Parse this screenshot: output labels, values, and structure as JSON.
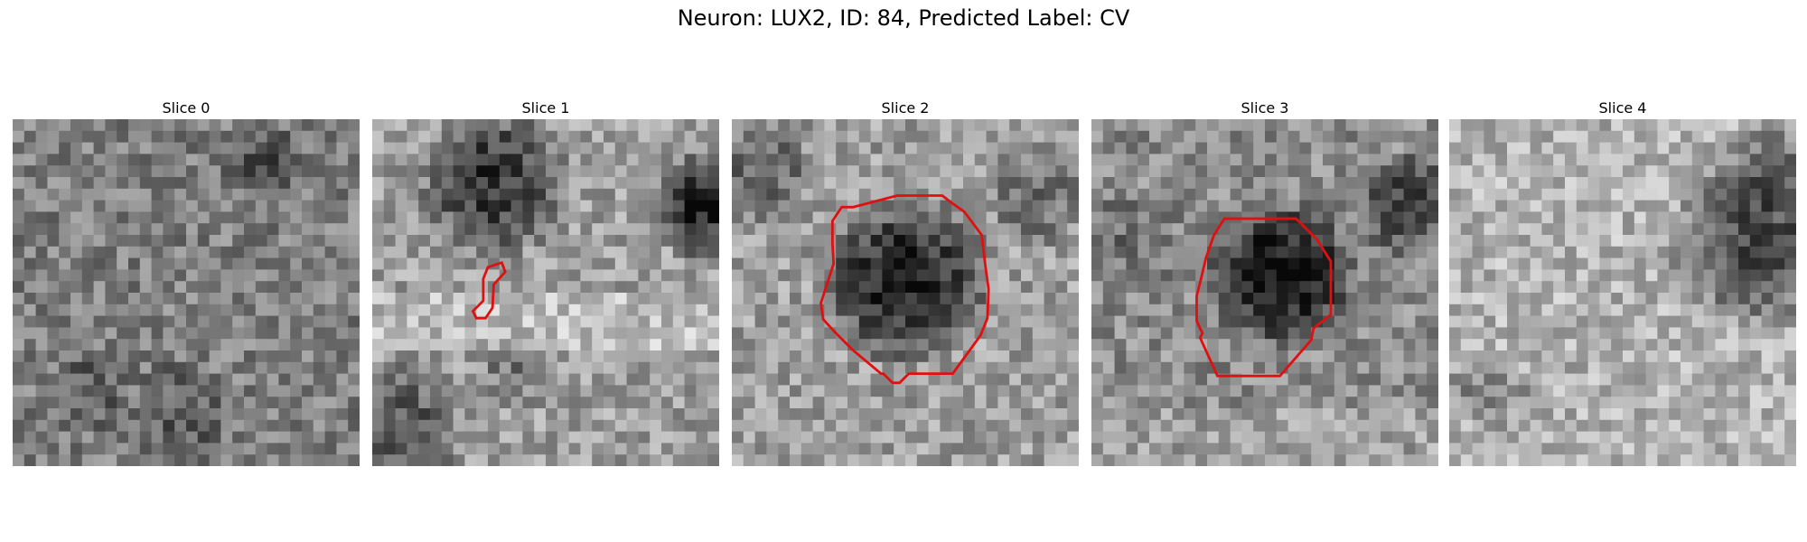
{
  "figure": {
    "title": "Neuron: LUX2, ID: 84, Predicted Label: CV",
    "outline_color": "#e01010",
    "colormap": "gray"
  },
  "slices": [
    {
      "title": "Slice 0",
      "has_outline": false
    },
    {
      "title": "Slice 1",
      "has_outline": true
    },
    {
      "title": "Slice 2",
      "has_outline": true
    },
    {
      "title": "Slice 3",
      "has_outline": true
    },
    {
      "title": "Slice 4",
      "has_outline": false
    }
  ]
}
